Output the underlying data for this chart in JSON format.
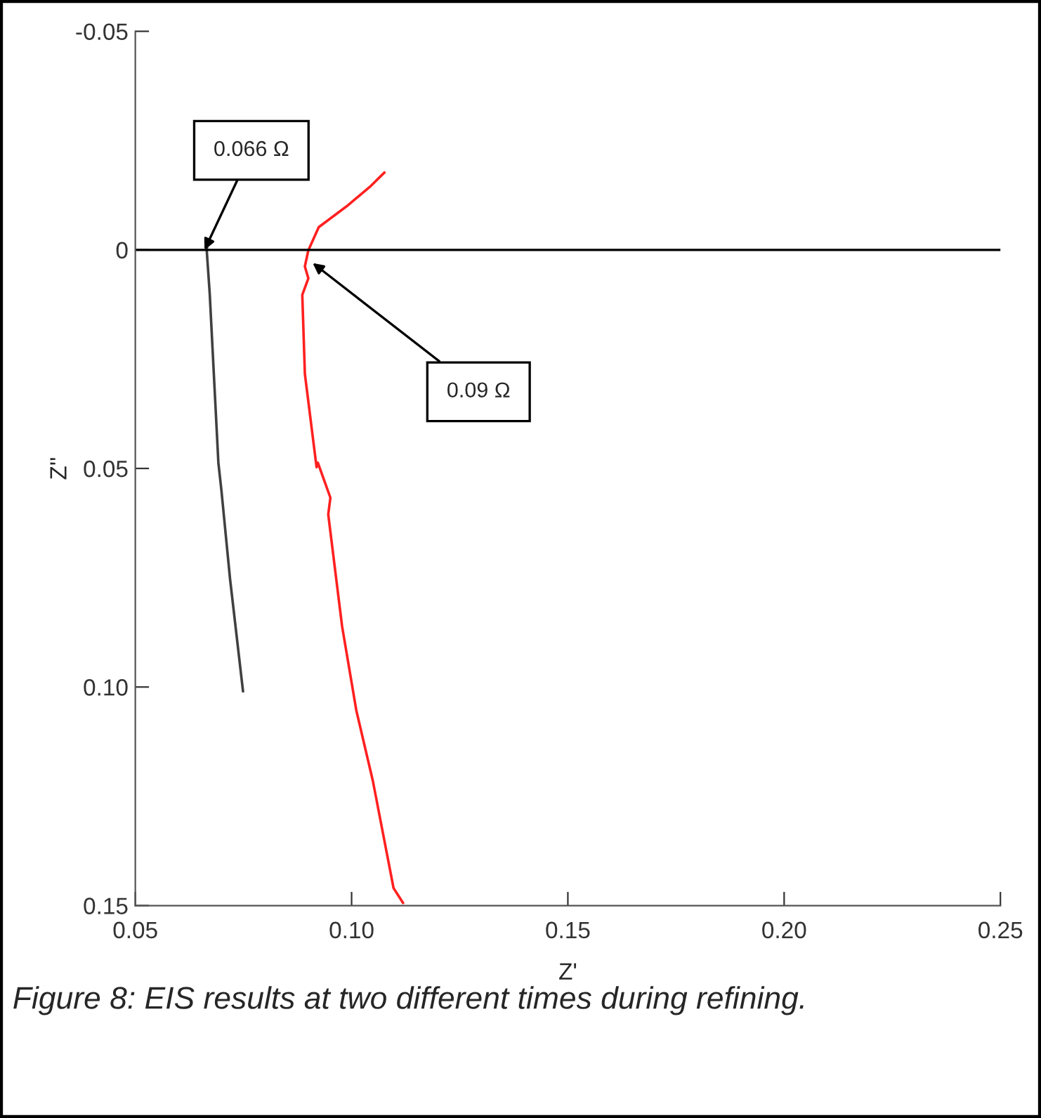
{
  "chart_data": {
    "type": "line",
    "xlabel": "Z'",
    "ylabel": "Z''",
    "xlim": [
      0.05,
      0.25
    ],
    "xticks": [
      0.05,
      {
        "value": 0.1,
        "label": "0.10"
      },
      0.15,
      {
        "value": 0.2,
        "label": "0.20"
      },
      0.25
    ],
    "ylim": [
      0.15,
      -0.05
    ],
    "yticks": [
      -0.05,
      0,
      0.05,
      {
        "value": 0.1,
        "label": "0.10"
      },
      0.15
    ],
    "grid": false,
    "legend": false,
    "marker": "none",
    "line_style": "solid",
    "series": [
      {
        "color": "#404040",
        "x": [
          0.0668,
          0.0665,
          0.0672,
          0.0692,
          0.0699,
          0.0719,
          0.0749
        ],
        "values": [
          -0.002,
          0.0,
          0.01,
          0.0487,
          0.055,
          0.0753,
          0.101
        ]
      },
      {
        "color": "#ff2020",
        "x": [
          0.1076,
          0.1042,
          0.0989,
          0.0924,
          0.09,
          0.0892,
          0.09,
          0.0886,
          0.0892,
          0.0919,
          0.0922,
          0.0951,
          0.0946,
          0.0978,
          0.1011,
          0.1049,
          0.1097,
          0.1119
        ],
        "values": [
          -0.0177,
          -0.0144,
          -0.01,
          -0.0052,
          0.0001,
          0.0038,
          0.0065,
          0.0103,
          0.0284,
          0.0497,
          0.0487,
          0.0567,
          0.0605,
          0.0861,
          0.1054,
          0.1214,
          0.146,
          0.1494
        ]
      }
    ],
    "ref_lines": [
      {
        "axis": "y",
        "value": 0,
        "color": "#000000",
        "line_style": "solid"
      }
    ],
    "annotations": [
      {
        "text": "0.066 Ω",
        "x": 0.066,
        "y": 0
      },
      {
        "text": "0.09 Ω",
        "x": 0.091,
        "y": 0.003
      },
      "Figure 8: EIS results at two different times during refining."
    ]
  }
}
